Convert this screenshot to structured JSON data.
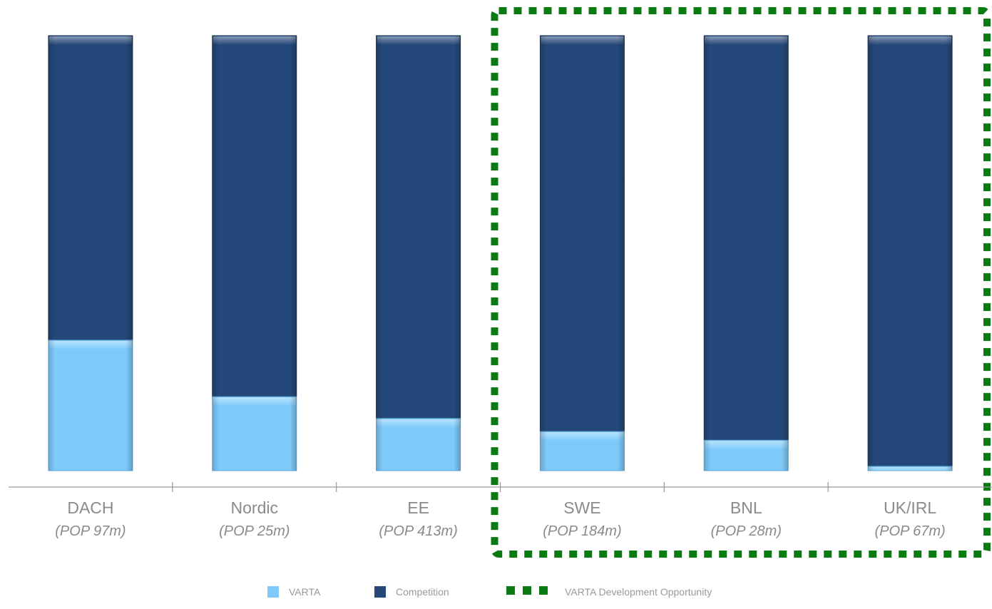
{
  "chart_data": {
    "type": "bar",
    "stacked": true,
    "percent_stacked": true,
    "categories": [
      "DACH",
      "Nordic",
      "EE",
      "SWE",
      "BNL",
      "UK/IRL"
    ],
    "category_subtitles": [
      "(POP 97m)",
      "(POP 25m)",
      "(POP 413m)",
      "(POP 184m)",
      "(POP 28m)",
      "(POP 67m)"
    ],
    "series": [
      {
        "name": "VARTA",
        "color": "#7ECBFB",
        "values": [
          30,
          17,
          12,
          9,
          7,
          1
        ]
      },
      {
        "name": "Competition",
        "color": "#25487A",
        "values": [
          70,
          83,
          88,
          91,
          93,
          99
        ]
      }
    ],
    "ylim": [
      0,
      100
    ],
    "title": "",
    "xlabel": "",
    "ylabel": "",
    "grid": false,
    "highlight": {
      "label": "VARTA Development Opportunity",
      "color": "#0A7A12",
      "categories": [
        "SWE",
        "BNL",
        "UK/IRL"
      ]
    },
    "legend": {
      "position": "bottom",
      "items": [
        {
          "label": "VARTA",
          "color": "#7ECBFB",
          "kind": "swatch"
        },
        {
          "label": "Competition",
          "color": "#25487A",
          "kind": "swatch"
        },
        {
          "label": "VARTA Development Opportunity",
          "color": "#0A7A12",
          "kind": "dashed"
        }
      ]
    }
  }
}
